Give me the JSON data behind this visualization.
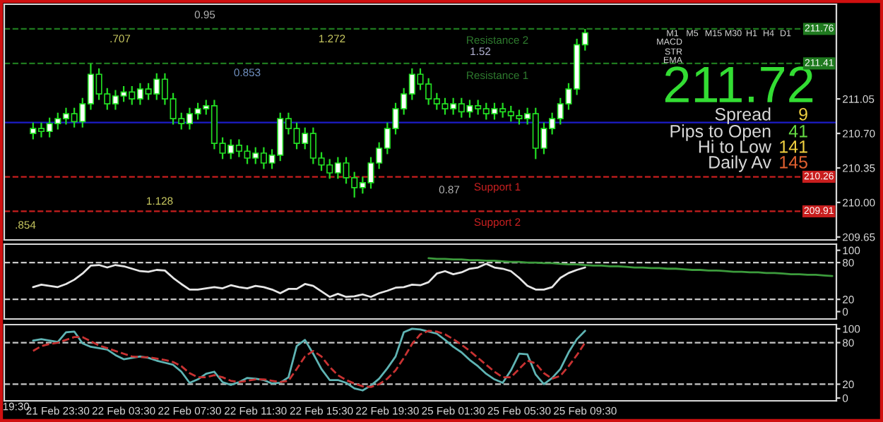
{
  "chart_data": [
    {
      "type": "candlestick",
      "categories": [
        null,
        null,
        null,
        null,
        null,
        null,
        null,
        null,
        null,
        null,
        null,
        null,
        null,
        null,
        null,
        null,
        null,
        null,
        null,
        null,
        null,
        null,
        null,
        null,
        null,
        null,
        null,
        null,
        null,
        null,
        null,
        null,
        null,
        null,
        null,
        null,
        null,
        null,
        null,
        null,
        null,
        null,
        null,
        null,
        null,
        null,
        null,
        null,
        null,
        null,
        null,
        null,
        null,
        null,
        null,
        null,
        null,
        null,
        null,
        null,
        null,
        null,
        null,
        null,
        null,
        null,
        null,
        null,
        null,
        null,
        null,
        null,
        null,
        null,
        null,
        null,
        null,
        null,
        null,
        null,
        null,
        null,
        null,
        null,
        null,
        null,
        null,
        null,
        null,
        null,
        null,
        null,
        null,
        null,
        null,
        null,
        null,
        null,
        null,
        null,
        null
      ],
      "ohlc": [
        null,
        null,
        null,
        [
          210.7,
          210.81,
          210.64,
          210.75
        ],
        [
          210.75,
          210.81,
          210.66,
          210.72
        ],
        [
          210.72,
          210.86,
          210.66,
          210.8
        ],
        [
          210.8,
          210.91,
          210.74,
          210.85
        ],
        [
          210.85,
          210.96,
          210.79,
          210.9
        ],
        [
          210.9,
          210.96,
          210.76,
          210.82
        ],
        [
          210.82,
          211.06,
          210.76,
          211.0
        ],
        [
          211.0,
          211.41,
          210.94,
          211.3
        ],
        [
          211.3,
          211.36,
          211.04,
          211.1
        ],
        [
          211.1,
          211.16,
          210.94,
          211.0
        ],
        [
          211.0,
          211.14,
          210.94,
          211.08
        ],
        [
          211.08,
          211.18,
          211.02,
          211.12
        ],
        [
          211.12,
          211.18,
          210.99,
          211.05
        ],
        [
          211.05,
          211.21,
          210.99,
          211.15
        ],
        [
          211.15,
          211.21,
          211.04,
          211.1
        ],
        [
          211.1,
          211.31,
          211.04,
          211.25
        ],
        [
          211.25,
          211.31,
          210.99,
          211.05
        ],
        [
          211.05,
          211.11,
          210.79,
          210.85
        ],
        [
          210.85,
          210.91,
          210.74,
          210.8
        ],
        [
          210.8,
          210.96,
          210.74,
          210.9
        ],
        [
          210.9,
          211.01,
          210.84,
          210.95
        ],
        [
          210.95,
          211.04,
          210.89,
          210.98
        ],
        [
          210.98,
          211.04,
          210.54,
          210.6
        ],
        [
          210.6,
          210.66,
          210.44,
          210.5
        ],
        [
          210.5,
          210.64,
          210.44,
          210.58
        ],
        [
          210.58,
          210.64,
          210.46,
          210.52
        ],
        [
          210.52,
          210.58,
          210.39,
          210.45
        ],
        [
          210.45,
          210.56,
          210.39,
          210.5
        ],
        [
          210.5,
          210.56,
          210.34,
          210.4
        ],
        [
          210.4,
          210.54,
          210.34,
          210.48
        ],
        [
          210.48,
          210.91,
          210.42,
          210.85
        ],
        [
          210.85,
          210.91,
          210.69,
          210.75
        ],
        [
          210.75,
          210.81,
          210.54,
          210.6
        ],
        [
          210.6,
          210.76,
          210.54,
          210.7
        ],
        [
          210.7,
          210.76,
          210.39,
          210.45
        ],
        [
          210.45,
          210.51,
          210.32,
          210.38
        ],
        [
          210.38,
          210.44,
          210.24,
          210.3
        ],
        [
          210.3,
          210.46,
          210.24,
          210.4
        ],
        [
          210.4,
          210.46,
          210.19,
          210.25
        ],
        [
          210.25,
          210.31,
          210.05,
          210.15
        ],
        [
          210.15,
          210.26,
          210.09,
          210.2
        ],
        [
          210.2,
          210.46,
          210.14,
          210.4
        ],
        [
          210.4,
          210.61,
          210.34,
          210.55
        ],
        [
          210.55,
          210.81,
          210.49,
          210.75
        ],
        [
          210.75,
          211.01,
          210.69,
          210.95
        ],
        [
          210.95,
          211.16,
          210.89,
          211.1
        ],
        [
          211.1,
          211.36,
          211.04,
          211.3
        ],
        [
          211.3,
          211.36,
          211.14,
          211.2
        ],
        [
          211.2,
          211.26,
          210.99,
          211.05
        ],
        [
          211.05,
          211.11,
          210.94,
          211.0
        ],
        [
          211.0,
          211.06,
          210.89,
          210.95
        ],
        [
          210.95,
          211.06,
          210.89,
          211.0
        ],
        [
          211.0,
          211.06,
          210.86,
          210.92
        ],
        [
          210.92,
          211.04,
          210.86,
          210.98
        ],
        [
          210.98,
          211.04,
          210.89,
          210.95
        ],
        [
          210.95,
          211.01,
          210.84,
          210.9
        ],
        [
          210.9,
          211.01,
          210.84,
          210.95
        ],
        [
          210.95,
          211.01,
          210.86,
          210.92
        ],
        [
          210.92,
          210.98,
          210.82,
          210.88
        ],
        [
          210.88,
          210.94,
          210.79,
          210.85
        ],
        [
          210.85,
          210.96,
          210.79,
          210.9
        ],
        [
          210.9,
          210.96,
          210.44,
          210.55
        ],
        [
          210.55,
          210.81,
          210.49,
          210.75
        ],
        [
          210.75,
          210.91,
          210.69,
          210.85
        ],
        [
          210.85,
          211.06,
          210.79,
          211.0
        ],
        [
          211.0,
          211.21,
          210.94,
          211.15
        ],
        [
          211.15,
          211.66,
          211.09,
          211.6
        ],
        [
          211.6,
          211.76,
          211.54,
          211.72
        ],
        null,
        null,
        null,
        null,
        null,
        null,
        null,
        null,
        null,
        null,
        null,
        null,
        null,
        null,
        null,
        null,
        null,
        null,
        null,
        null,
        null,
        null,
        null,
        null,
        null,
        null,
        null,
        null,
        null,
        null
      ],
      "ylim": [
        209.62,
        212.01
      ],
      "yticks": [
        209.65,
        {
          "value": 210.0,
          "label": "210.00"
        },
        210.35,
        {
          "value": 210.7,
          "label": "210.70"
        },
        211.05
      ],
      "tick_labels": "y",
      "ref_lines": [
        {
          "axis": "y",
          "value": 211.76,
          "label": "211.76",
          "color": "#1f7a1f",
          "line_style": "dashed"
        },
        {
          "axis": "y",
          "value": 211.41,
          "label": "211.41",
          "color": "#1f7a1f",
          "line_style": "dashed"
        },
        {
          "axis": "y",
          "value": 210.81,
          "label": null,
          "color": "#1c1cc8",
          "line_style": "solid"
        },
        {
          "axis": "y",
          "value": 210.26,
          "label": "210.26",
          "color": "#c81e1e",
          "line_style": "dashed"
        },
        {
          "axis": "y",
          "value": 209.91,
          "label": "209.91",
          "color": "#c81e1e",
          "line_style": "dashed"
        }
      ],
      "annotations": [
        "0.95",
        ".707",
        "1.272",
        "0.853",
        "1.52",
        "1.128",
        "0.87",
        ".854",
        "Resistance 2",
        "Resistance 1",
        "Support 1",
        "Support 2",
        "211.72",
        "Spread",
        "9",
        "Pips to Open",
        "41",
        "Hi to Low",
        "141",
        "Daily Av",
        "145",
        "MACD",
        "STR",
        "EMA",
        "M1",
        "M5",
        "M15",
        "M30",
        "H1",
        "H4",
        "D1"
      ]
    },
    {
      "type": "line",
      "categories": [
        null,
        null,
        null,
        null,
        null,
        null,
        null,
        null,
        null,
        null,
        null,
        null,
        null,
        null,
        null,
        null,
        null,
        null,
        null,
        null,
        null,
        null,
        null,
        null,
        null,
        null,
        null,
        null,
        null,
        null,
        null,
        null,
        null,
        null,
        null,
        null,
        null,
        null,
        null,
        null,
        null,
        null,
        null,
        null,
        null,
        null,
        null,
        null,
        null,
        null,
        null,
        null,
        null,
        null,
        null,
        null,
        null,
        null,
        null,
        null,
        null,
        null,
        null,
        null,
        null,
        null,
        null,
        null,
        null,
        null,
        null,
        null,
        null,
        null,
        null,
        null,
        null,
        null,
        null,
        null,
        null,
        null,
        null,
        null,
        null,
        null,
        null,
        null,
        null,
        null,
        null,
        null,
        null,
        null,
        null,
        null,
        null,
        null,
        null,
        null,
        null
      ],
      "series": [
        {
          "color": "#e6e6e6",
          "values": [
            null,
            null,
            null,
            40,
            44,
            42,
            40,
            45,
            52,
            62,
            75,
            76,
            72,
            76,
            74,
            70,
            66,
            65,
            68,
            67,
            55,
            45,
            36,
            36,
            38,
            40,
            38,
            43,
            40,
            38,
            42,
            40,
            36,
            30,
            37,
            37,
            45,
            42,
            33,
            24,
            29,
            24,
            25,
            28,
            24,
            30,
            34,
            39,
            40,
            44,
            43,
            48,
            62,
            66,
            61,
            64,
            70,
            72,
            78,
            72,
            70,
            66,
            55,
            42,
            36,
            36,
            40,
            55,
            63,
            68,
            72,
            null,
            null,
            null,
            null,
            null,
            null,
            null,
            null,
            null,
            null,
            null,
            null,
            null,
            null,
            null,
            null,
            null,
            null,
            null,
            null,
            null,
            null,
            null,
            null,
            null,
            null,
            null,
            null,
            null,
            null
          ]
        },
        {
          "color": "#3c9b3c",
          "values": [
            null,
            null,
            null,
            null,
            null,
            null,
            null,
            null,
            null,
            null,
            null,
            null,
            null,
            null,
            null,
            null,
            null,
            null,
            null,
            null,
            null,
            null,
            null,
            null,
            null,
            null,
            null,
            null,
            null,
            null,
            null,
            null,
            null,
            null,
            null,
            null,
            null,
            null,
            null,
            null,
            null,
            null,
            null,
            null,
            null,
            null,
            null,
            null,
            null,
            null,
            null,
            87,
            86,
            86,
            85,
            85,
            84,
            84,
            83,
            83,
            82,
            81,
            81,
            80,
            80,
            79,
            79,
            78,
            77,
            77,
            76,
            75,
            75,
            74,
            74,
            73,
            72,
            72,
            71,
            71,
            70,
            70,
            69,
            68,
            68,
            67,
            67,
            66,
            65,
            65,
            64,
            64,
            63,
            63,
            62,
            61,
            61,
            60,
            60,
            59,
            58
          ]
        }
      ],
      "ylim": [
        -12,
        110
      ],
      "yticks": [
        0,
        20,
        80,
        100
      ],
      "tick_labels": "y",
      "ref_lines": [
        {
          "axis": "y",
          "value": 20,
          "label": null,
          "color": "#c8c8c8",
          "line_style": "dashed"
        },
        {
          "axis": "y",
          "value": 80,
          "label": null,
          "color": "#c8c8c8",
          "line_style": "dashed"
        }
      ]
    },
    {
      "type": "line",
      "categories": [
        null,
        null,
        null,
        null,
        null,
        null,
        "21 Feb 23:30",
        null,
        null,
        null,
        null,
        null,
        null,
        null,
        "22 Feb 03:30",
        null,
        null,
        null,
        null,
        null,
        null,
        null,
        "22 Feb 07:30",
        null,
        null,
        null,
        null,
        null,
        null,
        null,
        "22 Feb 11:30",
        null,
        null,
        null,
        null,
        null,
        null,
        null,
        "22 Feb 15:30",
        null,
        null,
        null,
        null,
        null,
        null,
        null,
        "22 Feb 19:30",
        null,
        null,
        null,
        null,
        null,
        null,
        null,
        "25 Feb 01:30",
        null,
        null,
        null,
        null,
        null,
        null,
        null,
        "25 Feb 05:30",
        null,
        null,
        null,
        null,
        null,
        null,
        null,
        "25 Feb 09:30",
        null,
        null,
        null,
        null,
        null,
        null,
        null,
        null,
        null,
        null,
        null,
        null,
        null,
        null,
        null,
        null,
        null,
        null,
        null,
        null,
        null,
        null,
        null,
        null,
        null,
        null,
        null,
        null,
        null,
        null
      ],
      "series": [
        {
          "color": "#5fb4b4",
          "line_style": "solid",
          "values": [
            null,
            null,
            null,
            83,
            85,
            83,
            81,
            95,
            96,
            79,
            74,
            72,
            70,
            62,
            56,
            58,
            60,
            58,
            54,
            51,
            48,
            38,
            22,
            27,
            35,
            38,
            23,
            19,
            23,
            29,
            28,
            26,
            21,
            22,
            30,
            75,
            84,
            64,
            42,
            26,
            26,
            22,
            14,
            11,
            18,
            28,
            43,
            60,
            95,
            100,
            99,
            96,
            93,
            84,
            74,
            66,
            55,
            46,
            35,
            27,
            22,
            40,
            64,
            63,
            34,
            20,
            29,
            42,
            66,
            85,
            97,
            null,
            null,
            null,
            null,
            null,
            null,
            null,
            null,
            null,
            null,
            null,
            null,
            null,
            null,
            null,
            null,
            null,
            null,
            null,
            null,
            null,
            null,
            null,
            null,
            null,
            null,
            null,
            null,
            null,
            null
          ]
        },
        {
          "color": "#c83232",
          "line_style": "dashed",
          "values": [
            null,
            null,
            null,
            68,
            75,
            78,
            80,
            84,
            88,
            88,
            82,
            76,
            72,
            68,
            64,
            60,
            59,
            59,
            57,
            55,
            52,
            46,
            36,
            30,
            30,
            33,
            30,
            25,
            23,
            25,
            27,
            27,
            25,
            23,
            25,
            42,
            60,
            68,
            60,
            45,
            33,
            26,
            21,
            17,
            16,
            20,
            28,
            40,
            58,
            78,
            92,
            97,
            96,
            92,
            85,
            77,
            68,
            58,
            48,
            38,
            30,
            30,
            42,
            54,
            50,
            36,
            28,
            32,
            46,
            62,
            80,
            null,
            null,
            null,
            null,
            null,
            null,
            null,
            null,
            null,
            null,
            null,
            null,
            null,
            null,
            null,
            null,
            null,
            null,
            null,
            null,
            null,
            null,
            null,
            null,
            null,
            null,
            null,
            null,
            null,
            null
          ]
        }
      ],
      "ylim": [
        -4,
        106
      ],
      "yticks": [
        0,
        20,
        80,
        100
      ],
      "ref_lines": [
        {
          "axis": "y",
          "value": 20,
          "label": null,
          "color": "#c8c8c8",
          "line_style": "dashed"
        },
        {
          "axis": "y",
          "value": 80,
          "label": null,
          "color": "#c8c8c8",
          "line_style": "dashed"
        }
      ],
      "annotations": [
        "19:30"
      ]
    }
  ]
}
